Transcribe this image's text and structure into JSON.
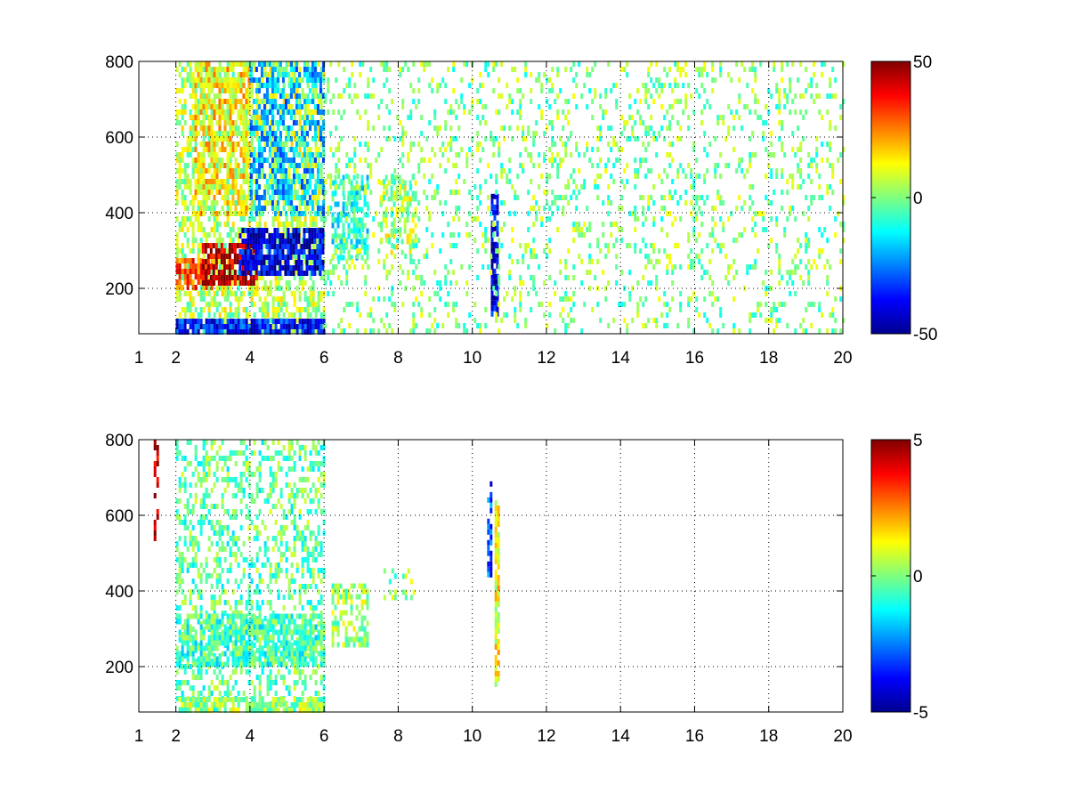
{
  "figure": {
    "background": "#ffffff"
  },
  "chart_data": [
    {
      "type": "heatmap",
      "title": "",
      "xlabel": "",
      "ylabel": "",
      "xlim": [
        1,
        20
      ],
      "ylim": [
        80,
        800
      ],
      "xticks": [
        1,
        2,
        4,
        6,
        8,
        10,
        12,
        14,
        16,
        18,
        20
      ],
      "xtick_labels": [
        "1",
        "2",
        "4",
        "6",
        "8",
        "10",
        "12",
        "14",
        "16",
        "18",
        "20"
      ],
      "yticks": [
        200,
        400,
        600,
        800
      ],
      "ytick_labels": [
        "200",
        "400",
        "600",
        "800"
      ],
      "grid": true,
      "colormap": "jet",
      "clim": [
        -50,
        50
      ],
      "colorbar_ticks": [
        -50,
        0,
        50
      ],
      "colorbar_labels": [
        "-50",
        "0",
        "50"
      ],
      "features": [
        {
          "x": [
            2.0,
            6.0
          ],
          "y": [
            80,
            800
          ],
          "value": 5,
          "density": 0.55
        },
        {
          "x": [
            2.0,
            3.0
          ],
          "y": [
            200,
            280
          ],
          "value": 30,
          "density": 0.8
        },
        {
          "x": [
            2.7,
            4.2
          ],
          "y": [
            220,
            320
          ],
          "value": 45,
          "density": 0.75
        },
        {
          "x": [
            3.7,
            6.0
          ],
          "y": [
            240,
            360
          ],
          "value": -40,
          "density": 0.8
        },
        {
          "x": [
            2.0,
            6.0
          ],
          "y": [
            80,
            120
          ],
          "value": -35,
          "density": 0.85
        },
        {
          "x": [
            2.5,
            4.0
          ],
          "y": [
            400,
            800
          ],
          "value": 15,
          "density": 0.5
        },
        {
          "x": [
            4.0,
            6.0
          ],
          "y": [
            400,
            800
          ],
          "value": -20,
          "density": 0.5
        },
        {
          "x": [
            6.2,
            7.2
          ],
          "y": [
            280,
            500
          ],
          "value": -10,
          "density": 0.6
        },
        {
          "x": [
            7.5,
            8.5
          ],
          "y": [
            300,
            500
          ],
          "value": 5,
          "density": 0.45
        },
        {
          "x": [
            10.5,
            10.7
          ],
          "y": [
            130,
            450
          ],
          "value": -40,
          "density": 0.9
        },
        {
          "x": [
            6.0,
            20.0
          ],
          "y": [
            80,
            800
          ],
          "value": 0,
          "density": 0.18
        }
      ]
    },
    {
      "type": "heatmap",
      "title": "",
      "xlabel": "",
      "ylabel": "",
      "xlim": [
        1,
        20
      ],
      "ylim": [
        80,
        800
      ],
      "xticks": [
        1,
        2,
        4,
        6,
        8,
        10,
        12,
        14,
        16,
        18,
        20
      ],
      "xtick_labels": [
        "1",
        "2",
        "4",
        "6",
        "8",
        "10",
        "12",
        "14",
        "16",
        "18",
        "20"
      ],
      "yticks": [
        200,
        400,
        600,
        800
      ],
      "ytick_labels": [
        "200",
        "400",
        "600",
        "800"
      ],
      "grid": true,
      "colormap": "jet",
      "clim": [
        -5,
        5
      ],
      "colorbar_ticks": [
        -5,
        0,
        5
      ],
      "colorbar_labels": [
        "-5",
        "0",
        "5"
      ],
      "features": [
        {
          "x": [
            2.0,
            6.0
          ],
          "y": [
            80,
            800
          ],
          "value": -0.3,
          "density": 0.35
        },
        {
          "x": [
            2.0,
            6.0
          ],
          "y": [
            200,
            340
          ],
          "value": -0.6,
          "density": 0.75
        },
        {
          "x": [
            2.0,
            6.0
          ],
          "y": [
            80,
            120
          ],
          "value": 0.3,
          "density": 0.8
        },
        {
          "x": [
            6.2,
            7.2
          ],
          "y": [
            260,
            420
          ],
          "value": 0.3,
          "density": 0.5
        },
        {
          "x": [
            7.6,
            8.4
          ],
          "y": [
            380,
            460
          ],
          "value": 0.2,
          "density": 0.35
        },
        {
          "x": [
            10.6,
            10.7
          ],
          "y": [
            150,
            640
          ],
          "value": 1.2,
          "density": 0.9
        },
        {
          "x": [
            10.4,
            10.5
          ],
          "y": [
            440,
            690
          ],
          "value": -3.0,
          "density": 0.5
        },
        {
          "x": [
            1.4,
            1.5
          ],
          "y": [
            540,
            800
          ],
          "value": 4.5,
          "density": 0.5
        }
      ]
    }
  ]
}
